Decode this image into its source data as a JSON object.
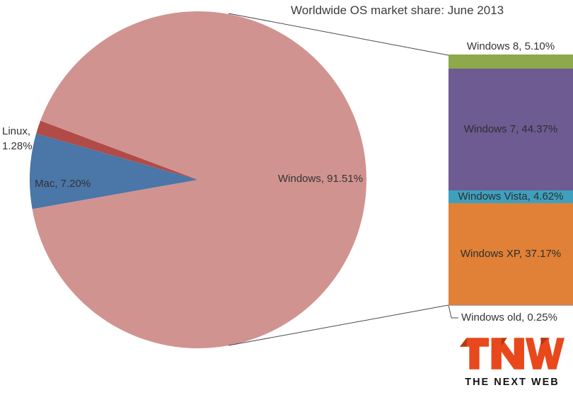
{
  "chart_data": {
    "type": "bar-of-pie",
    "title": "Worldwide OS market share: June 2013",
    "unit": "%",
    "background": "#ffffff",
    "pie": {
      "start_angle_deg": 260,
      "slices": [
        {
          "name": "Mac",
          "value": 7.2,
          "label": "Mac, 7.20%",
          "color": "#4A76A8"
        },
        {
          "name": "Linux",
          "value": 1.28,
          "label": "Linux, 1.28%",
          "color": "#B04B48"
        },
        {
          "name": "Windows",
          "value": 91.51,
          "label": "Windows, 91.51%",
          "color": "#D19390",
          "breakout_to_bar": true
        }
      ]
    },
    "bar": {
      "represents": "Windows",
      "segments": [
        {
          "name": "Windows 8",
          "value": 5.1,
          "label": "Windows 8, 5.10%",
          "color": "#8EA84C",
          "label_placement": "above"
        },
        {
          "name": "Windows 7",
          "value": 44.37,
          "label": "Windows 7, 44.37%",
          "color": "#6D5B92",
          "label_placement": "inside"
        },
        {
          "name": "Windows Vista",
          "value": 4.62,
          "label": "Windows Vista, 4.62%",
          "color": "#3FA0BE",
          "label_placement": "inside"
        },
        {
          "name": "Windows XP",
          "value": 37.17,
          "label": "Windows XP, 37.17%",
          "color": "#E08137",
          "label_placement": "inside"
        },
        {
          "name": "Windows old",
          "value": 0.25,
          "label": "Windows old, 0.25%",
          "color": "#9CACC6",
          "label_placement": "below"
        }
      ]
    },
    "leader_line_color": "#4a4a4a",
    "text_color": "#333333"
  },
  "branding": {
    "logo_text": "TNW",
    "logo_subtext": "THE NEXT WEB",
    "logo_color": "#E8481C",
    "logo_fold_color": "#B53A10"
  }
}
